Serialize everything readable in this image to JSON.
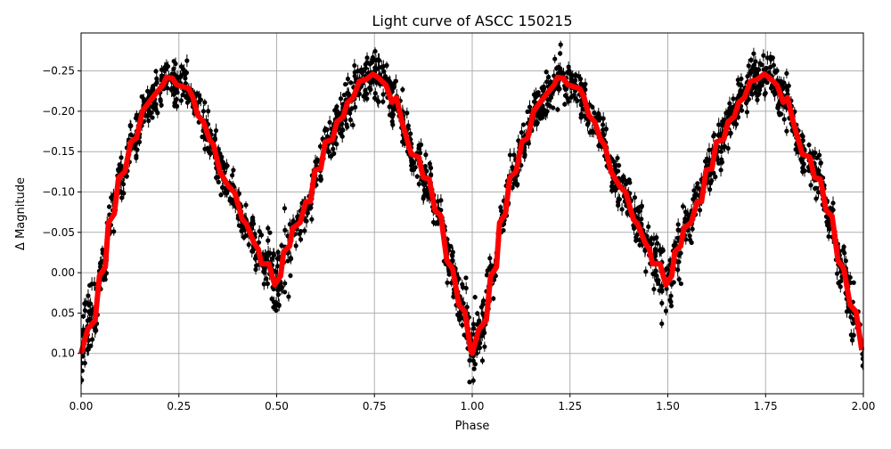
{
  "chart_data": {
    "type": "scatter",
    "title": "Light curve of ASCC 150215",
    "xlabel": "Phase",
    "ylabel": "Δ Magnitude",
    "xlim": [
      0,
      2
    ],
    "ylim": [
      0.15,
      -0.297
    ],
    "y_inverted": true,
    "grid": true,
    "x_ticks": [
      "0.00",
      "0.25",
      "0.50",
      "0.75",
      "1.00",
      "1.25",
      "1.50",
      "1.75",
      "2.00"
    ],
    "x_tick_values": [
      0,
      0.25,
      0.5,
      0.75,
      1,
      1.25,
      1.5,
      1.75,
      2
    ],
    "y_ticks": [
      "−0.25",
      "−0.20",
      "−0.15",
      "−0.10",
      "−0.05",
      "0.00",
      "0.05",
      "0.10"
    ],
    "y_tick_values": [
      -0.25,
      -0.2,
      -0.15,
      -0.1,
      -0.05,
      0,
      0.05,
      0.1
    ],
    "colors": {
      "observations": "#000000",
      "model": "#ff0000",
      "grid": "#b0b0b0"
    },
    "observations": {
      "description_visible": false,
      "scatter": 0.025,
      "has_error_bars": true
    },
    "model": {
      "phase": [
        0.0,
        0.017,
        0.036,
        0.047,
        0.062,
        0.07,
        0.085,
        0.096,
        0.112,
        0.127,
        0.142,
        0.157,
        0.172,
        0.191,
        0.21,
        0.218,
        0.233,
        0.244,
        0.275,
        0.286,
        0.298,
        0.313,
        0.328,
        0.339,
        0.355,
        0.377,
        0.393,
        0.412,
        0.423,
        0.442,
        0.453,
        0.461,
        0.48,
        0.495,
        0.51,
        0.518,
        0.533,
        0.541,
        0.56,
        0.575,
        0.586,
        0.598,
        0.613,
        0.624,
        0.643,
        0.654,
        0.67,
        0.681,
        0.696,
        0.711,
        0.727,
        0.746,
        0.761,
        0.78,
        0.795,
        0.806,
        0.822,
        0.844,
        0.863,
        0.875,
        0.89,
        0.905,
        0.92,
        0.935,
        0.95,
        0.966,
        0.981,
        0.996,
        1.0,
        1.017,
        1.036,
        1.047,
        1.062,
        1.07,
        1.085,
        1.096,
        1.112,
        1.127,
        1.142,
        1.157,
        1.172,
        1.191,
        1.21,
        1.218,
        1.233,
        1.244,
        1.275,
        1.286,
        1.298,
        1.313,
        1.328,
        1.339,
        1.355,
        1.377,
        1.393,
        1.412,
        1.423,
        1.442,
        1.453,
        1.461,
        1.48,
        1.495,
        1.51,
        1.518,
        1.533,
        1.541,
        1.56,
        1.575,
        1.586,
        1.598,
        1.613,
        1.624,
        1.643,
        1.654,
        1.67,
        1.681,
        1.696,
        1.711,
        1.727,
        1.746,
        1.761,
        1.78,
        1.795,
        1.806,
        1.822,
        1.844,
        1.863,
        1.875,
        1.89,
        1.905,
        1.92,
        1.935,
        1.95,
        1.966,
        1.981,
        1.996
      ],
      "magnitude": [
        0.1,
        0.07,
        0.059,
        0.004,
        -0.007,
        -0.062,
        -0.073,
        -0.118,
        -0.125,
        -0.162,
        -0.167,
        -0.2,
        -0.21,
        -0.222,
        -0.233,
        -0.242,
        -0.241,
        -0.233,
        -0.228,
        -0.217,
        -0.195,
        -0.187,
        -0.165,
        -0.158,
        -0.125,
        -0.107,
        -0.099,
        -0.066,
        -0.06,
        -0.037,
        -0.029,
        -0.011,
        -0.011,
        0.015,
        0.004,
        -0.026,
        -0.033,
        -0.055,
        -0.062,
        -0.088,
        -0.088,
        -0.127,
        -0.129,
        -0.162,
        -0.165,
        -0.187,
        -0.193,
        -0.211,
        -0.217,
        -0.237,
        -0.239,
        -0.246,
        -0.241,
        -0.232,
        -0.211,
        -0.217,
        -0.184,
        -0.147,
        -0.143,
        -0.118,
        -0.116,
        -0.077,
        -0.07,
        -0.015,
        -0.005,
        0.04,
        0.048,
        0.096,
        0.1,
        0.07,
        0.059,
        0.004,
        -0.007,
        -0.062,
        -0.073,
        -0.118,
        -0.125,
        -0.162,
        -0.167,
        -0.2,
        -0.21,
        -0.222,
        -0.233,
        -0.242,
        -0.241,
        -0.233,
        -0.228,
        -0.217,
        -0.195,
        -0.187,
        -0.165,
        -0.158,
        -0.125,
        -0.107,
        -0.099,
        -0.066,
        -0.06,
        -0.037,
        -0.029,
        -0.011,
        -0.011,
        0.015,
        0.004,
        -0.026,
        -0.033,
        -0.055,
        -0.062,
        -0.088,
        -0.088,
        -0.127,
        -0.129,
        -0.162,
        -0.165,
        -0.187,
        -0.193,
        -0.211,
        -0.217,
        -0.237,
        -0.239,
        -0.246,
        -0.241,
        -0.232,
        -0.211,
        -0.217,
        -0.184,
        -0.147,
        -0.143,
        -0.118,
        -0.116,
        -0.077,
        -0.07,
        -0.015,
        -0.005,
        0.04,
        0.048,
        0.096
      ]
    }
  }
}
